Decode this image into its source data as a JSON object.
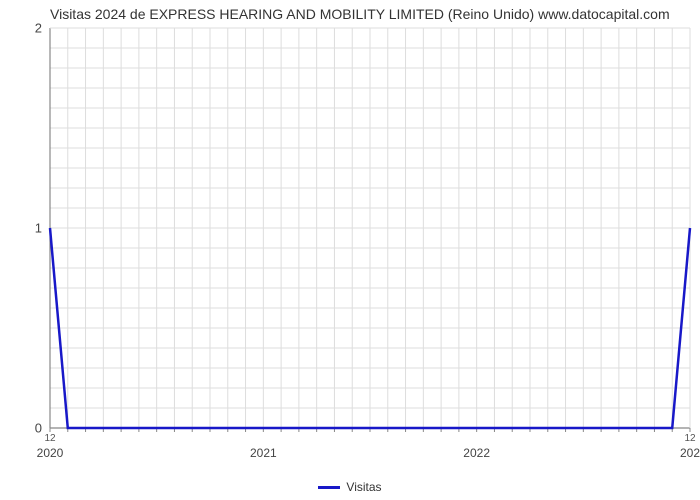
{
  "title": "Visitas 2024 de EXPRESS HEARING AND MOBILITY LIMITED (Reino Unido) www.datocapital.com",
  "chart": {
    "type": "line",
    "background_color": "#ffffff",
    "grid_color": "#dddddd",
    "border_color": "#888888",
    "title_fontsize": 14,
    "title_color": "#333333",
    "axis_label_fontsize": 13,
    "axis_label_color": "#444444",
    "x_axis": {
      "range_months": 36,
      "minor_tick_interval_months": 1,
      "major_labels": [
        {
          "pos": 0,
          "label": "2020"
        },
        {
          "pos": 12,
          "label": "2021"
        },
        {
          "pos": 24,
          "label": "2022"
        },
        {
          "pos": 36,
          "label": "202"
        }
      ],
      "edge_minor_labels": [
        {
          "pos": 0,
          "label": "12"
        },
        {
          "pos": 36,
          "label": "12"
        }
      ]
    },
    "y_axis": {
      "ylim": [
        0,
        2
      ],
      "major_ticks": [
        0,
        1,
        2
      ],
      "minor_tick_interval": 0.1
    },
    "series": {
      "name": "Visitas",
      "color": "#1818c8",
      "line_width": 2.5,
      "points": [
        {
          "x": 0,
          "y": 1.0
        },
        {
          "x": 1,
          "y": 0.0
        },
        {
          "x": 35,
          "y": 0.0
        },
        {
          "x": 36,
          "y": 1.0
        }
      ]
    },
    "legend": {
      "label": "Visitas",
      "position": "bottom-center",
      "swatch_color": "#1818c8",
      "fontsize": 12
    }
  }
}
